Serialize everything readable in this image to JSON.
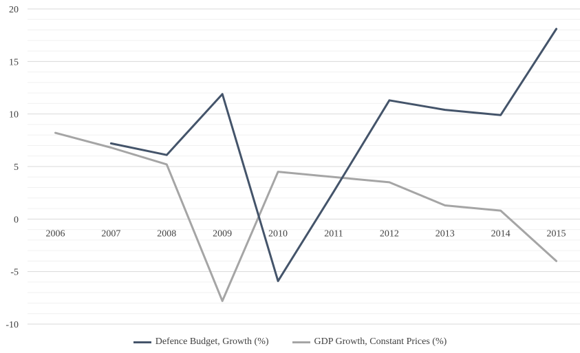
{
  "chart_data": {
    "type": "line",
    "categories": [
      "2006",
      "2007",
      "2008",
      "2009",
      "2010",
      "2011",
      "2012",
      "2013",
      "2014",
      "2015"
    ],
    "series": [
      {
        "name": "Defence Budget, Growth (%)",
        "color": "#44546a",
        "values": [
          null,
          7.2,
          6.1,
          11.9,
          -5.9,
          2.6,
          11.3,
          10.4,
          9.9,
          18.1
        ]
      },
      {
        "name": "GDP Growth, Constant Prices (%)",
        "color": "#a5a5a5",
        "values": [
          8.2,
          6.8,
          5.2,
          -7.8,
          4.5,
          4.0,
          3.5,
          1.3,
          0.8,
          -4.0
        ]
      }
    ],
    "ylim": [
      -10,
      20
    ],
    "yticks": [
      -10,
      -5,
      0,
      5,
      10,
      15,
      20
    ],
    "ytick_labels": [
      "-10",
      "-5",
      "0",
      "5",
      "10",
      "15",
      "20"
    ],
    "grid": true,
    "legend": "bottom",
    "title": "",
    "xlabel": "",
    "ylabel": ""
  }
}
